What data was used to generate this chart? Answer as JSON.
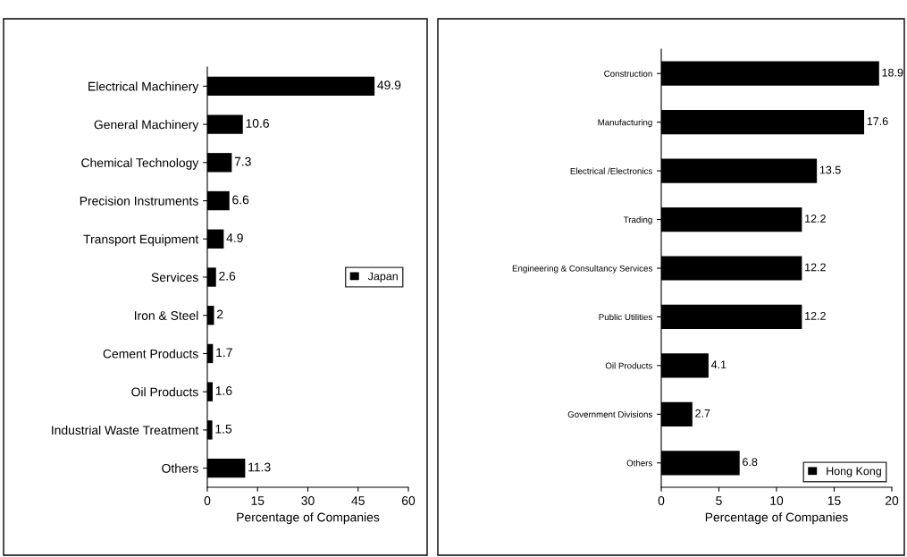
{
  "chart_data": [
    {
      "type": "bar",
      "orientation": "horizontal",
      "categories": [
        "Electrical Machinery",
        "General Machinery",
        "Chemical Technology",
        "Precision Instruments",
        "Transport Equipment",
        "Services",
        "Iron & Steel",
        "Cement Products",
        "Oil Products",
        "Industrial Waste Treatment",
        "Others"
      ],
      "series": [
        {
          "name": "Japan",
          "color": "#000000",
          "values": [
            49.9,
            10.6,
            7.3,
            6.6,
            4.9,
            2.6,
            2,
            1.7,
            1.6,
            1.5,
            11.3
          ]
        }
      ],
      "xlabel": "Percentage of Companies",
      "xlim": [
        0,
        60
      ],
      "xticks": [
        0,
        15,
        30,
        45,
        60
      ],
      "data_labels": true,
      "legend": "right",
      "grid": false
    },
    {
      "type": "bar",
      "orientation": "horizontal",
      "categories": [
        "Construction",
        "Manufacturing",
        "Electrical /Electronics",
        "Trading",
        "Engineering & Consultancy Services",
        "Public Utilities",
        "Oil Products",
        "Government Divisions",
        "Others"
      ],
      "series": [
        {
          "name": "Hong Kong",
          "color": "#000000",
          "values": [
            18.9,
            17.6,
            13.5,
            12.2,
            12.2,
            12.2,
            4.1,
            2.7,
            6.8
          ]
        }
      ],
      "xlabel": "Percentage of Companies",
      "xlim": [
        0,
        20
      ],
      "xticks": [
        0,
        5,
        10,
        15,
        20
      ],
      "data_labels": true,
      "legend": "bottom right",
      "grid": false
    }
  ]
}
